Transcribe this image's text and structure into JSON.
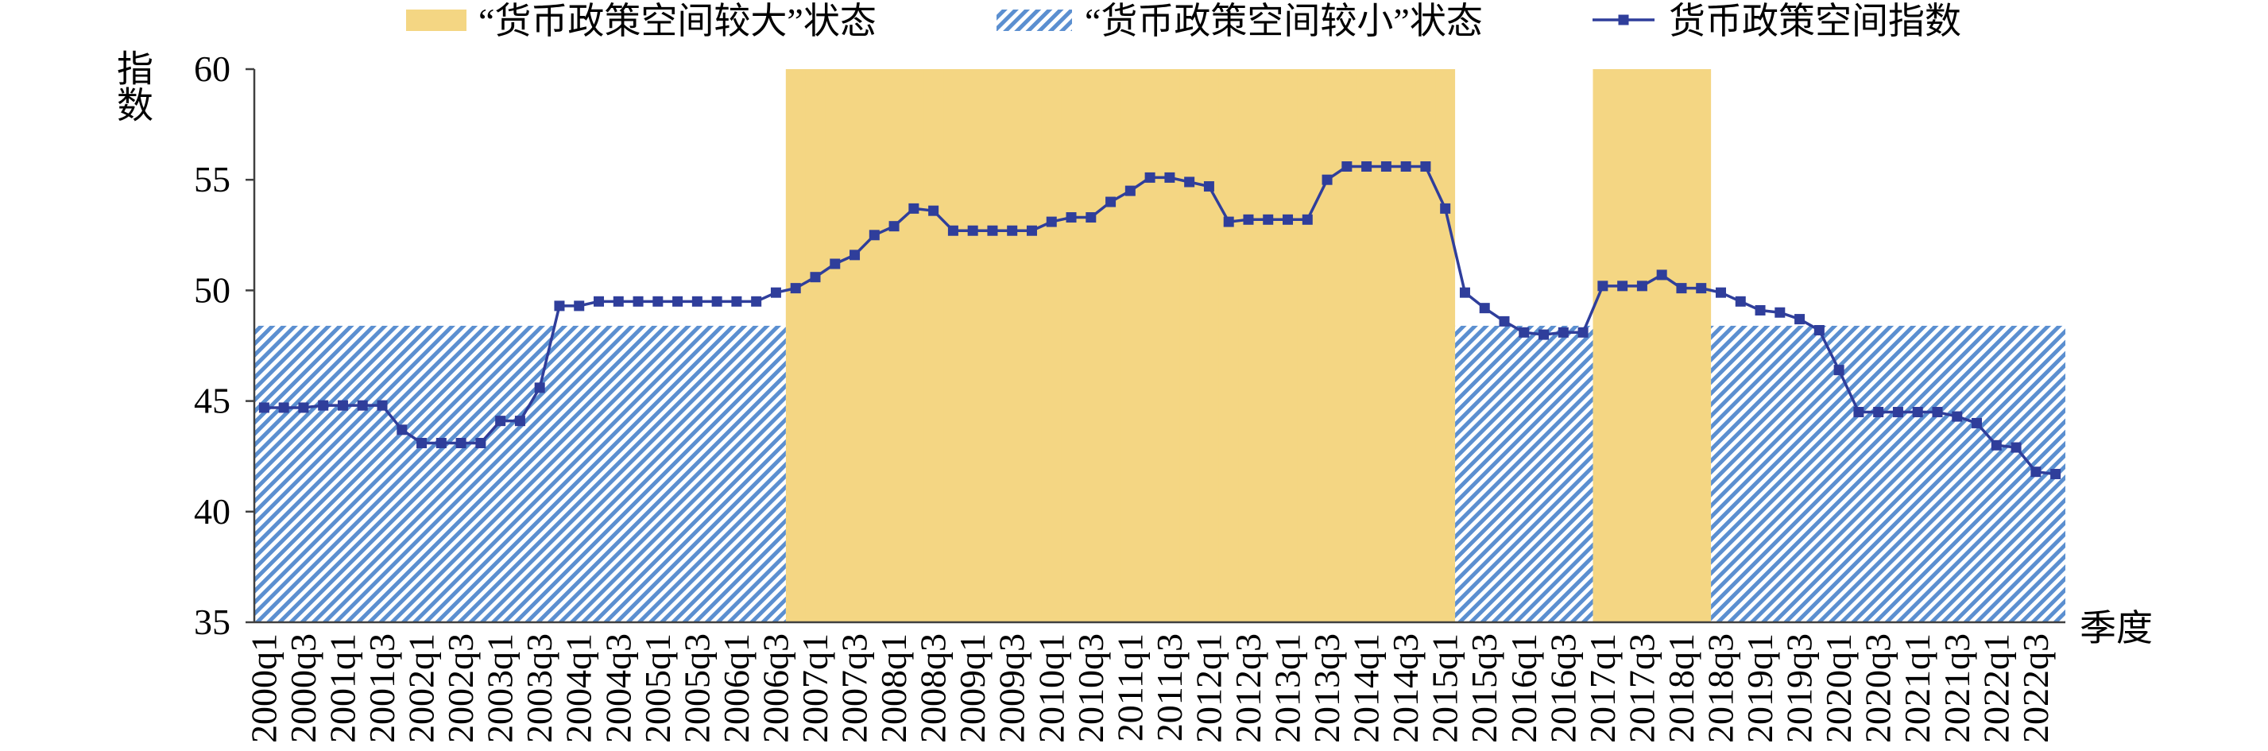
{
  "chart_data": {
    "type": "line",
    "categories": [
      "2000q1",
      "",
      "2000q3",
      "",
      "2001q1",
      "",
      "2001q3",
      "",
      "2002q1",
      "",
      "2002q3",
      "",
      "2003q1",
      "",
      "2003q3",
      "",
      "2004q1",
      "",
      "2004q3",
      "",
      "2005q1",
      "",
      "2005q3",
      "",
      "2006q1",
      "",
      "2006q3",
      "",
      "2007q1",
      "",
      "2007q3",
      "",
      "2008q1",
      "",
      "2008q3",
      "",
      "2009q1",
      "",
      "2009q3",
      "",
      "2010q1",
      "",
      "2010q3",
      "",
      "2011q1",
      "",
      "2011q3",
      "",
      "2012q1",
      "",
      "2012q3",
      "",
      "2013q1",
      "",
      "2013q3",
      "",
      "2014q1",
      "",
      "2014q3",
      "",
      "2015q1",
      "",
      "2015q3",
      "",
      "2016q1",
      "",
      "2016q3",
      "",
      "2017q1",
      "",
      "2017q3",
      "",
      "2018q1",
      "",
      "2018q3",
      "",
      "2019q1",
      "",
      "2019q3",
      "",
      "2020q1",
      "",
      "2020q3",
      "",
      "2021q1",
      "",
      "2021q3",
      "",
      "2022q1",
      "",
      "2022q3",
      ""
    ],
    "series": [
      {
        "name": "“货币政策空间较大”状态",
        "type": "bar",
        "color": "#f4d683",
        "values": [
          null,
          null,
          null,
          null,
          null,
          null,
          null,
          null,
          null,
          null,
          null,
          null,
          null,
          null,
          null,
          null,
          null,
          null,
          null,
          null,
          null,
          null,
          null,
          null,
          null,
          null,
          null,
          60,
          60,
          60,
          60,
          60,
          60,
          60,
          60,
          60,
          60,
          60,
          60,
          60,
          60,
          60,
          60,
          60,
          60,
          60,
          60,
          60,
          60,
          60,
          60,
          60,
          60,
          60,
          60,
          60,
          60,
          60,
          60,
          60,
          60,
          null,
          null,
          null,
          null,
          null,
          null,
          null,
          60,
          60,
          60,
          60,
          60,
          60,
          null,
          null,
          null,
          null,
          null,
          null,
          null,
          null,
          null,
          null,
          null,
          null,
          null,
          null,
          null,
          null,
          null,
          null
        ]
      },
      {
        "name": "“货币政策空间较小”状态",
        "type": "bar",
        "color": "#5b8fd0",
        "values": [
          48.4,
          48.4,
          48.4,
          48.4,
          48.4,
          48.4,
          48.4,
          48.4,
          48.4,
          48.4,
          48.4,
          48.4,
          48.4,
          48.4,
          48.4,
          48.4,
          48.4,
          48.4,
          48.4,
          48.4,
          48.4,
          48.4,
          48.4,
          48.4,
          48.4,
          48.4,
          48.4,
          null,
          null,
          null,
          null,
          null,
          null,
          null,
          null,
          null,
          null,
          null,
          null,
          null,
          null,
          null,
          null,
          null,
          null,
          null,
          null,
          null,
          null,
          null,
          null,
          null,
          null,
          null,
          null,
          null,
          null,
          null,
          null,
          null,
          null,
          48.4,
          48.4,
          48.4,
          48.4,
          48.4,
          48.4,
          48.4,
          null,
          null,
          null,
          null,
          null,
          null,
          48.4,
          48.4,
          48.4,
          48.4,
          48.4,
          48.4,
          48.4,
          48.4,
          48.4,
          48.4,
          48.4,
          48.4,
          48.4,
          48.4,
          48.4,
          48.4,
          48.4,
          48.4
        ]
      },
      {
        "name": "货币政策空间指数",
        "type": "line",
        "color": "#2f3e9b",
        "values": [
          44.7,
          44.7,
          44.7,
          44.8,
          44.8,
          44.8,
          44.8,
          43.7,
          43.1,
          43.1,
          43.1,
          43.1,
          44.1,
          44.1,
          45.6,
          49.3,
          49.3,
          49.5,
          49.5,
          49.5,
          49.5,
          49.5,
          49.5,
          49.5,
          49.5,
          49.5,
          49.9,
          50.1,
          50.6,
          51.2,
          51.6,
          52.5,
          52.9,
          53.7,
          53.6,
          52.7,
          52.7,
          52.7,
          52.7,
          52.7,
          53.1,
          53.3,
          53.3,
          54.0,
          54.5,
          55.1,
          55.1,
          54.9,
          54.7,
          53.1,
          53.2,
          53.2,
          53.2,
          53.2,
          55.0,
          55.6,
          55.6,
          55.6,
          55.6,
          55.6,
          53.7,
          49.9,
          49.2,
          48.6,
          48.1,
          48.0,
          48.1,
          48.1,
          50.2,
          50.2,
          50.2,
          50.7,
          50.1,
          50.1,
          49.9,
          49.5,
          49.1,
          49.0,
          48.7,
          48.2,
          46.4,
          44.5,
          44.5,
          44.5,
          44.5,
          44.5,
          44.3,
          44.0,
          43.0,
          42.9,
          41.8,
          41.7
        ]
      }
    ],
    "xlabel": "季度",
    "ylabel": "指数",
    "ylim": [
      35,
      60
    ],
    "yticks": [
      35,
      40,
      45,
      50,
      55,
      60
    ],
    "grid": false,
    "legend": "top",
    "axis_color": "#404040"
  }
}
